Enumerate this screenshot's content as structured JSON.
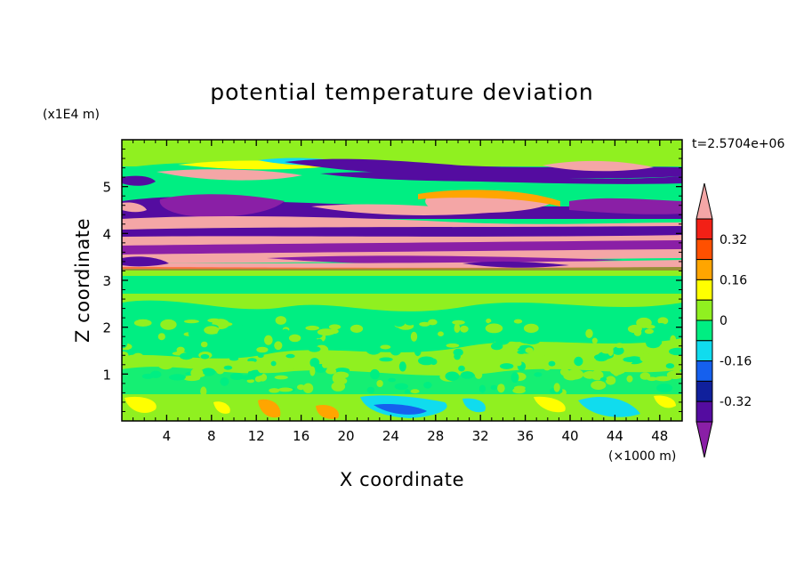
{
  "chart_data": {
    "type": "heatmap",
    "title": "potential temperature deviation",
    "xlabel": "X coordinate",
    "ylabel": "Z coordinate",
    "x_unit": "(×1000 m)",
    "y_unit": "(x1E4 m)",
    "time_label": "t=2.5704e+06",
    "xlim": [
      0,
      50
    ],
    "ylim": [
      0,
      6
    ],
    "x_ticks": [
      4,
      8,
      12,
      16,
      20,
      24,
      28,
      32,
      36,
      40,
      44,
      48
    ],
    "y_ticks": [
      1,
      2,
      3,
      4,
      5
    ],
    "colorbar": {
      "levels": [
        -0.4,
        -0.32,
        -0.24,
        -0.16,
        -0.08,
        0,
        0.08,
        0.16,
        0.24,
        0.32,
        0.4
      ],
      "tick_labels": [
        "0.32",
        "0.16",
        "0",
        "-0.16",
        "-0.32"
      ],
      "tick_values": [
        0.32,
        0.16,
        0,
        -0.16,
        -0.32
      ],
      "colors_low_to_high": [
        "#8a1fa6",
        "#540ca0",
        "#10209c",
        "#1560ee",
        "#10dcee",
        "#00ee82",
        "#90f020",
        "#ffff00",
        "#ffa500",
        "#ff5000",
        "#f22016",
        "#f4a6a6"
      ]
    },
    "bands": [
      {
        "z": [
          0.0,
          0.55
        ],
        "value": 0.0,
        "note": "mixed lower layer with scattered cold/warm cells"
      },
      {
        "z": [
          0.55,
          3.3
        ],
        "value": 0.03,
        "note": "near-zero fluctuations"
      },
      {
        "z": [
          3.3,
          3.5
        ],
        "value": 0.4
      },
      {
        "z": [
          3.5,
          3.7
        ],
        "value": -0.4
      },
      {
        "z": [
          3.7,
          3.9
        ],
        "value": 0.4
      },
      {
        "z": [
          3.9,
          4.1
        ],
        "value": -0.4
      },
      {
        "z": [
          4.1,
          4.3
        ],
        "value": 0.4
      },
      {
        "z": [
          4.3,
          4.6
        ],
        "value": -0.4
      },
      {
        "z": [
          4.6,
          4.85
        ],
        "value": 0.4
      },
      {
        "z": [
          4.85,
          5.05
        ],
        "value": 0.05
      },
      {
        "z": [
          5.05,
          5.2
        ],
        "value": -0.4
      },
      {
        "z": [
          5.2,
          5.4
        ],
        "value": 0.4
      },
      {
        "z": [
          5.4,
          6.0
        ],
        "value": 0.03
      }
    ]
  }
}
